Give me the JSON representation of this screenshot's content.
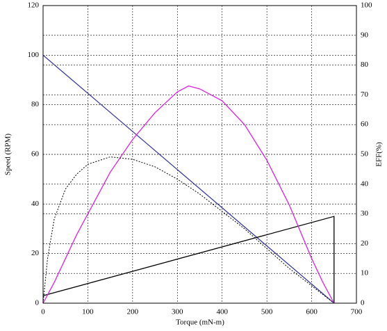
{
  "chart_data": {
    "type": "line",
    "x_label": "Torque (mN-m)",
    "y_label": "Speed (RPM)",
    "y2_label": "EFF(%)",
    "xlim": [
      0,
      700
    ],
    "xticks": [
      0,
      100,
      200,
      300,
      400,
      500,
      600,
      700
    ],
    "ylim": [
      0,
      120
    ],
    "yticks": [
      0,
      20,
      40,
      60,
      80,
      100,
      120
    ],
    "y2lim": [
      0,
      100
    ],
    "y2ticks": [
      0,
      10,
      20,
      30,
      40,
      50,
      60,
      70,
      80,
      90,
      100
    ],
    "grid": true,
    "series": [
      {
        "color": "#3b3b9a",
        "style": "solid",
        "x": [
          0,
          650
        ],
        "values": [
          100,
          0
        ]
      },
      {
        "color": "#000000",
        "style": "solid",
        "x": [
          0,
          650,
          650
        ],
        "values": [
          3,
          35,
          0
        ]
      },
      {
        "color": "#e020e0",
        "style": "solid",
        "axis": "y2",
        "x": [
          0,
          25,
          50,
          75,
          100,
          150,
          200,
          250,
          300,
          325,
          350,
          400,
          450,
          500,
          550,
          600,
          625,
          650
        ],
        "values": [
          0,
          7,
          15,
          23,
          30,
          44,
          55,
          64,
          71,
          73,
          72,
          68,
          60,
          48,
          33,
          15,
          7,
          0
        ]
      },
      {
        "color": "#000000",
        "style": "dashed",
        "x": [
          0,
          10,
          25,
          50,
          75,
          100,
          150,
          200,
          250,
          300,
          350,
          400,
          450,
          500,
          550,
          600,
          650
        ],
        "values": [
          0,
          18,
          34,
          46,
          52,
          56,
          59,
          58,
          55,
          50,
          44,
          37,
          30,
          22,
          14,
          7,
          0
        ]
      }
    ]
  }
}
